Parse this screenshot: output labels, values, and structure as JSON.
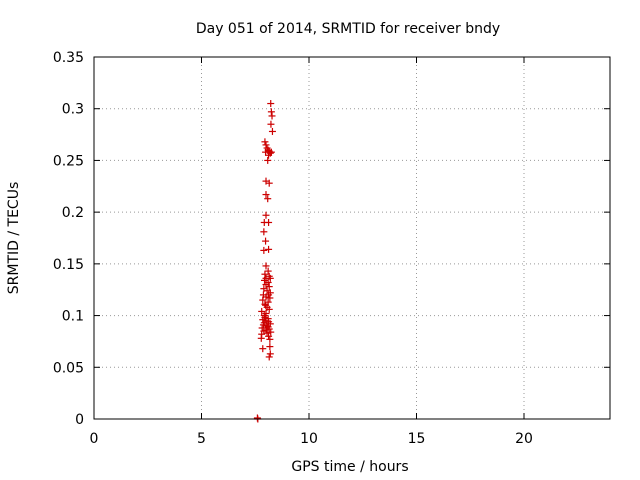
{
  "chart_data": {
    "type": "scatter",
    "title": "Day 051 of 2014, SRMTID for receiver bndy",
    "xlabel": "GPS time / hours",
    "ylabel": "SRMTID / TECUs",
    "xlim": [
      0,
      24
    ],
    "ylim": [
      0,
      0.35
    ],
    "xticks": [
      0,
      5,
      10,
      15,
      20
    ],
    "yticks": [
      0,
      0.05,
      0.1,
      0.15,
      0.2,
      0.25,
      0.3,
      0.35
    ],
    "xtick_labels": [
      "0",
      "5",
      "10",
      "15",
      "20"
    ],
    "ytick_labels": [
      "0",
      "0.05",
      "0.1",
      "0.15",
      "0.2",
      "0.25",
      "0.3",
      "0.35"
    ],
    "grid": true,
    "marker": "+",
    "color": "#cc0000",
    "series": [
      {
        "x": [
          8.22,
          8.25,
          8.28,
          8.23,
          8.3,
          7.95,
          8.0,
          8.05,
          8.1,
          7.98,
          8.2,
          8.15,
          8.12,
          8.25,
          8.08,
          8.0,
          8.15,
          8.0,
          8.08,
          8.0,
          7.92,
          8.12,
          7.9,
          7.98,
          8.12,
          7.9,
          8.0,
          8.1,
          7.95,
          8.15,
          8.0,
          8.2,
          7.93,
          8.1,
          8.0,
          8.15,
          7.9,
          8.05,
          8.2,
          7.88,
          8.12,
          8.0,
          8.18,
          7.85,
          8.1,
          7.95,
          7.98,
          8.05,
          8.15,
          7.8,
          8.0,
          7.92,
          7.95,
          8.1,
          7.85,
          8.0,
          8.12,
          7.92,
          8.2,
          7.88,
          8.05,
          8.1,
          7.82,
          8.15,
          8.0,
          7.9,
          8.22,
          8.05,
          7.8,
          8.12,
          7.78,
          8.18,
          8.18,
          7.85,
          8.2,
          8.15,
          7.6,
          7.62
        ],
        "y": [
          0.305,
          0.297,
          0.293,
          0.285,
          0.278,
          0.268,
          0.265,
          0.262,
          0.26,
          0.258,
          0.257,
          0.259,
          0.255,
          0.258,
          0.25,
          0.23,
          0.228,
          0.217,
          0.213,
          0.197,
          0.19,
          0.19,
          0.181,
          0.172,
          0.164,
          0.163,
          0.148,
          0.143,
          0.14,
          0.138,
          0.136,
          0.136,
          0.134,
          0.132,
          0.13,
          0.128,
          0.126,
          0.124,
          0.122,
          0.12,
          0.12,
          0.118,
          0.117,
          0.115,
          0.113,
          0.111,
          0.11,
          0.108,
          0.106,
          0.104,
          0.102,
          0.1,
          0.098,
          0.097,
          0.096,
          0.095,
          0.094,
          0.093,
          0.092,
          0.091,
          0.09,
          0.089,
          0.088,
          0.087,
          0.086,
          0.085,
          0.084,
          0.083,
          0.082,
          0.08,
          0.078,
          0.077,
          0.07,
          0.068,
          0.063,
          0.06,
          0.001,
          0.0
        ]
      }
    ]
  }
}
